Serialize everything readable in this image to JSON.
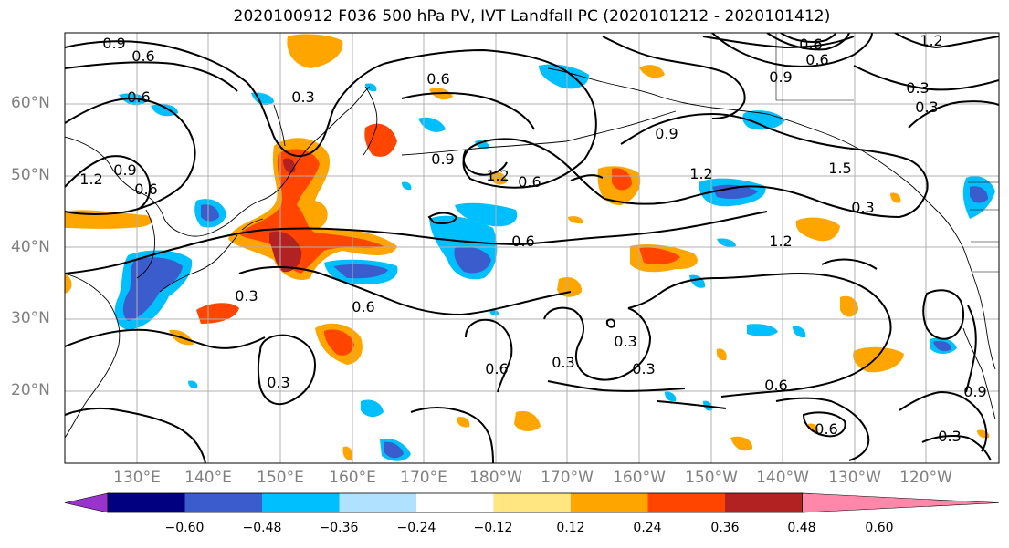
{
  "title": "2020100912 F036 500 hPa PV, IVT Landfall PC (2020101212 - 2020101412)",
  "lat_labels": [
    "60°N",
    "50°N",
    "40°N",
    "30°N",
    "20°N"
  ],
  "lon_labels": [
    "130°E",
    "140°E",
    "150°E",
    "160°E",
    "170°E",
    "180°W",
    "170°W",
    "160°W",
    "150°W",
    "140°W",
    "130°W",
    "120°W"
  ],
  "contour_levels": [
    "0.3",
    "0.6",
    "0.9",
    "1.2",
    "1.5"
  ],
  "contour_labels": [
    "0.9",
    "0.6",
    "0.6",
    "0.3",
    "0.9",
    "1.2",
    "0.6",
    "0.9",
    "1.2",
    "0.6",
    "0.6",
    "0.3",
    "0.6",
    "0.6",
    "0.3",
    "0.6",
    "0.3",
    "0.3",
    "0.3",
    "1.2",
    "1.2",
    "1.5",
    "0.9",
    "0.6",
    "0.6",
    "1.2",
    "0.9",
    "0.3",
    "0.3",
    "0.3",
    "0.6",
    "0.6",
    "0.3",
    "0.9"
  ],
  "colorbar": {
    "colors": [
      "#9933cc",
      "#000080",
      "#3a5ccc",
      "#00bfff",
      "#b0e2ff",
      "#ffffff",
      "#ffe680",
      "#ffa500",
      "#ff4500",
      "#b22222",
      "#ff88aa"
    ],
    "ticks": [
      "−0.60",
      "−0.48",
      "−0.36",
      "−0.24",
      "−0.12",
      "0.12",
      "0.24",
      "0.36",
      "0.48",
      "0.60"
    ]
  },
  "shading_colors": {
    "pos_low": "#ffe680",
    "pos_mid": "#ffa500",
    "pos_high": "#ff4500",
    "pos_max": "#b22222",
    "neg_low": "#b0e2ff",
    "neg_mid": "#00bfff",
    "neg_high": "#3a5ccc",
    "neg_max": "#000080"
  }
}
